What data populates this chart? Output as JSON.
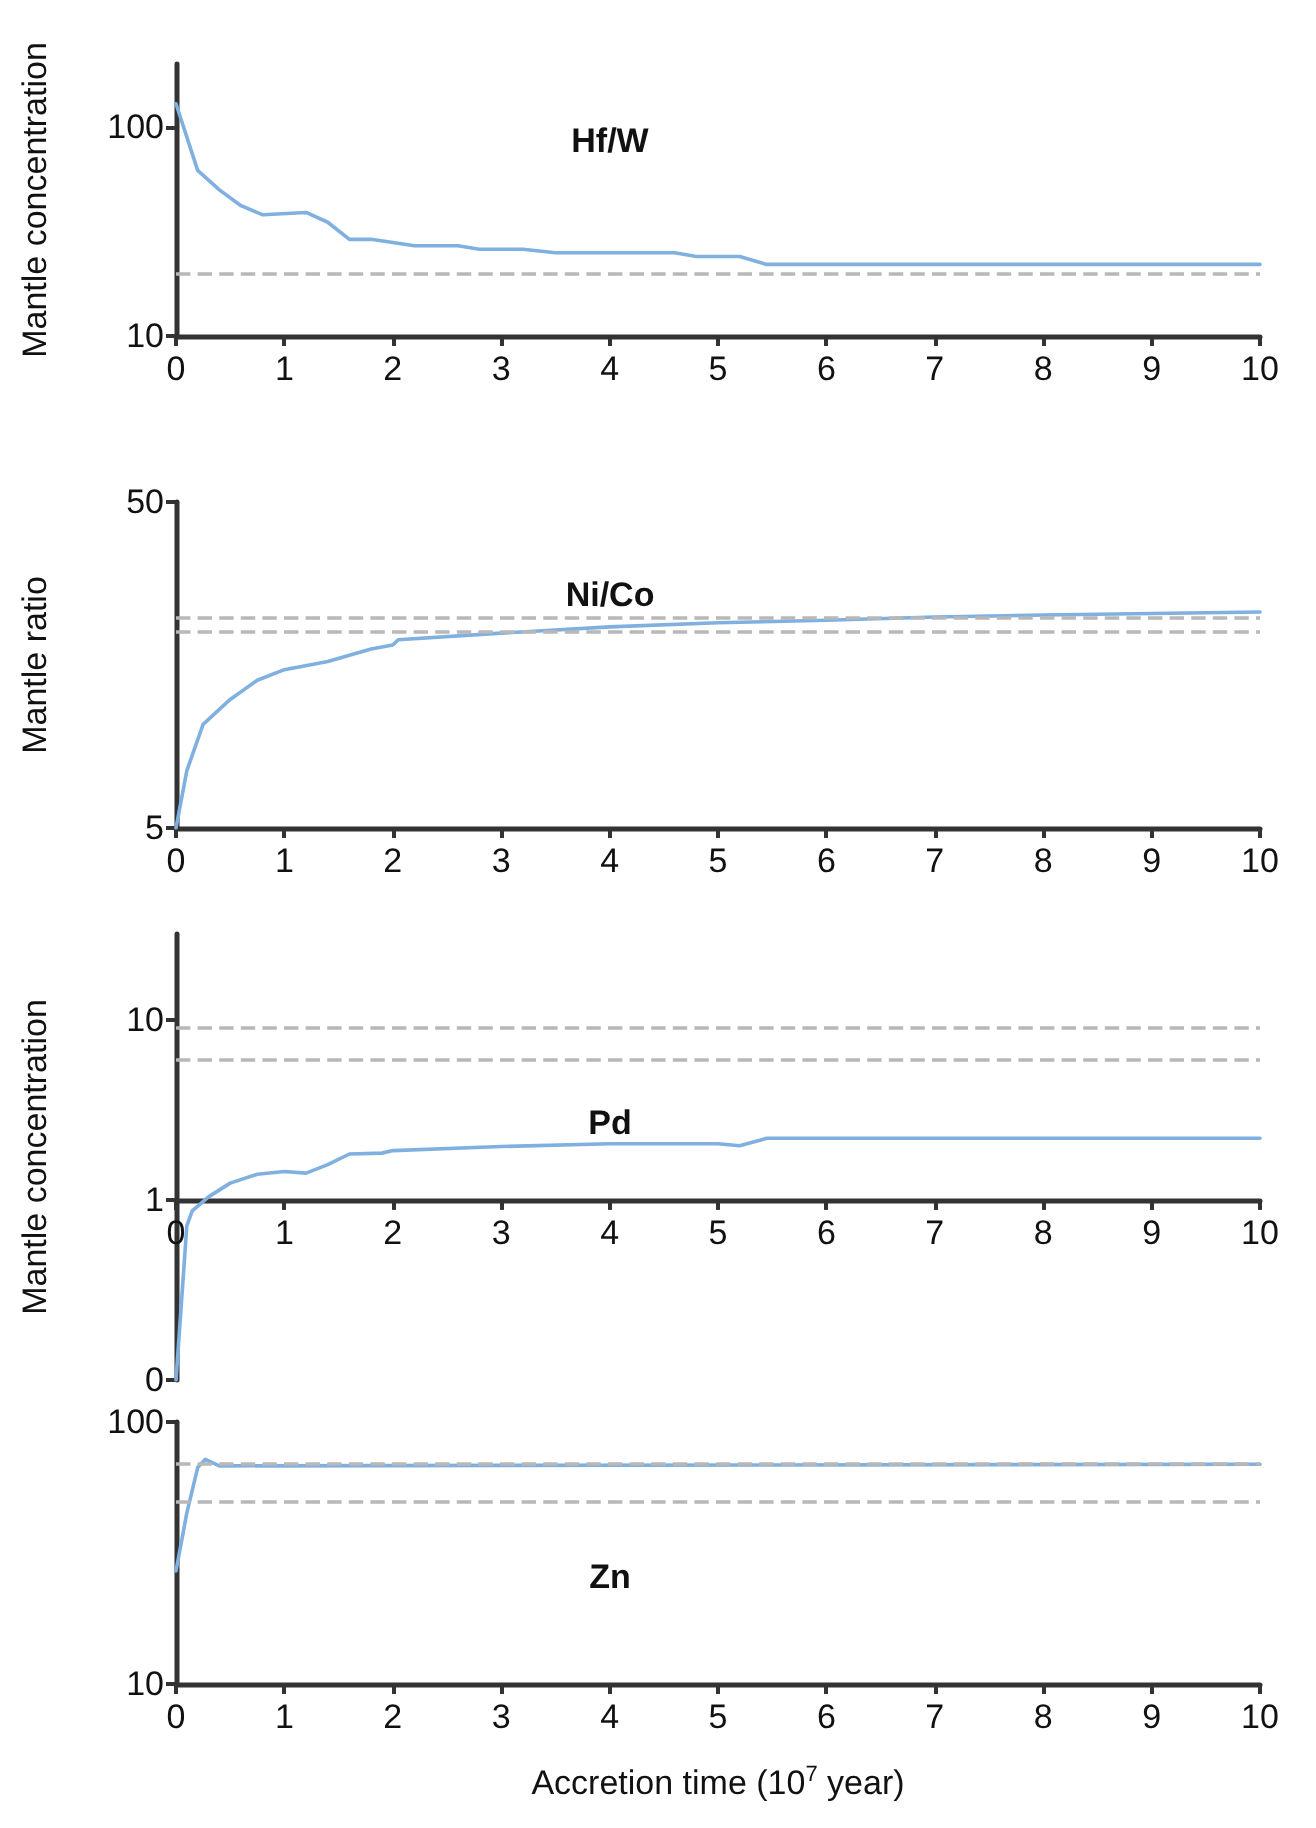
{
  "chart_data": [
    {
      "type": "line",
      "title": "Hf/W",
      "ylabel": "Mantle concentration",
      "log": "y",
      "xlim": [
        0,
        10
      ],
      "xticks": [
        0,
        1,
        2,
        3,
        4,
        5,
        6,
        7,
        8,
        9,
        10
      ],
      "ylim": [
        10,
        200
      ],
      "yticks": [
        10,
        100
      ],
      "grid": false,
      "marker": "none",
      "line_style": "solid",
      "series": [
        {
          "color": "#7fb0e0",
          "x": [
            0,
            0.2,
            0.4,
            0.6,
            0.8,
            1.2,
            1.4,
            1.6,
            1.8,
            2.2,
            2.6,
            2.8,
            3.2,
            3.5,
            4.6,
            4.8,
            5.2,
            5.45,
            10
          ],
          "values": [
            129,
            62,
            50,
            42,
            38,
            39,
            35,
            29,
            29,
            27,
            27,
            26,
            26,
            25,
            25,
            24,
            24,
            22,
            22
          ]
        }
      ],
      "ref_lines": [
        {
          "axis": "y",
          "value": 20,
          "color": "#b8b8b8",
          "line_style": "dashed"
        }
      ]
    },
    {
      "type": "line",
      "title": "Ni/Co",
      "ylabel": "Mantle ratio",
      "log": "y",
      "xlim": [
        0,
        10
      ],
      "xticks": [
        0,
        1,
        2,
        3,
        4,
        5,
        6,
        7,
        8,
        9,
        10
      ],
      "ylim": [
        5,
        50
      ],
      "yticks": [
        5,
        50
      ],
      "grid": false,
      "marker": "none",
      "line_style": "solid",
      "series": [
        {
          "color": "#7fb0e0",
          "x": [
            0,
            0.1,
            0.25,
            0.5,
            0.75,
            1,
            1.4,
            1.8,
            2,
            2.05,
            3,
            4,
            5,
            6,
            7,
            8,
            10
          ],
          "values": [
            5,
            7.5,
            10.4,
            12.4,
            14.2,
            15.3,
            16.2,
            17.7,
            18.2,
            18.9,
            19.8,
            20.7,
            21.3,
            21.7,
            22.2,
            22.5,
            23
          ]
        }
      ],
      "ref_lines": [
        {
          "axis": "y",
          "value": 22,
          "color": "#b8b8b8",
          "line_style": "dashed"
        },
        {
          "axis": "y",
          "value": 20,
          "color": "#b8b8b8",
          "line_style": "dashed"
        }
      ]
    },
    {
      "type": "line",
      "title": "Pd",
      "ylabel": "Mantle concentration",
      "log": "y",
      "xlim": [
        0,
        10
      ],
      "xticks": [
        0,
        1,
        2,
        3,
        4,
        5,
        6,
        7,
        8,
        9,
        10
      ],
      "ylim": [
        0.1,
        30
      ],
      "yticks": [
        {
          "value": 0.1,
          "label": "0"
        },
        1,
        10
      ],
      "grid": false,
      "marker": "none",
      "line_style": "solid",
      "series": [
        {
          "color": "#7fb0e0",
          "x": [
            0,
            0.1,
            0.15,
            0.3,
            0.5,
            0.75,
            1,
            1.2,
            1.4,
            1.6,
            1.9,
            2,
            3,
            4,
            5,
            5.2,
            5.45,
            10
          ],
          "values": [
            0.1,
            0.72,
            0.87,
            1.04,
            1.24,
            1.39,
            1.44,
            1.41,
            1.57,
            1.8,
            1.82,
            1.88,
            1.98,
            2.05,
            2.05,
            2,
            2.2,
            2.2
          ]
        }
      ],
      "ref_lines": [
        {
          "axis": "y",
          "value": 9,
          "color": "#b8b8b8",
          "line_style": "dashed"
        },
        {
          "axis": "y",
          "value": 6,
          "color": "#b8b8b8",
          "line_style": "dashed"
        }
      ]
    },
    {
      "type": "line",
      "title": "Zn",
      "xlabel": "Accretion time (10$^{7}$ year)",
      "log": "y",
      "xlim": [
        0,
        10
      ],
      "xticks": [
        0,
        1,
        2,
        3,
        4,
        5,
        6,
        7,
        8,
        9,
        10
      ],
      "ylim": [
        10,
        100
      ],
      "yticks": [
        10,
        100
      ],
      "grid": false,
      "marker": "none",
      "line_style": "solid",
      "series": [
        {
          "color": "#7fb0e0",
          "x": [
            0,
            0.1,
            0.2,
            0.27,
            0.4,
            10
          ],
          "values": [
            27,
            45,
            67,
            72,
            68,
            69
          ]
        }
      ],
      "ref_lines": [
        {
          "axis": "y",
          "value": 70,
          "color": "#b8b8b8",
          "line_style": "dashed"
        },
        {
          "axis": "y",
          "value": 50,
          "color": "#b8b8b8",
          "line_style": "dashed"
        }
      ]
    }
  ]
}
